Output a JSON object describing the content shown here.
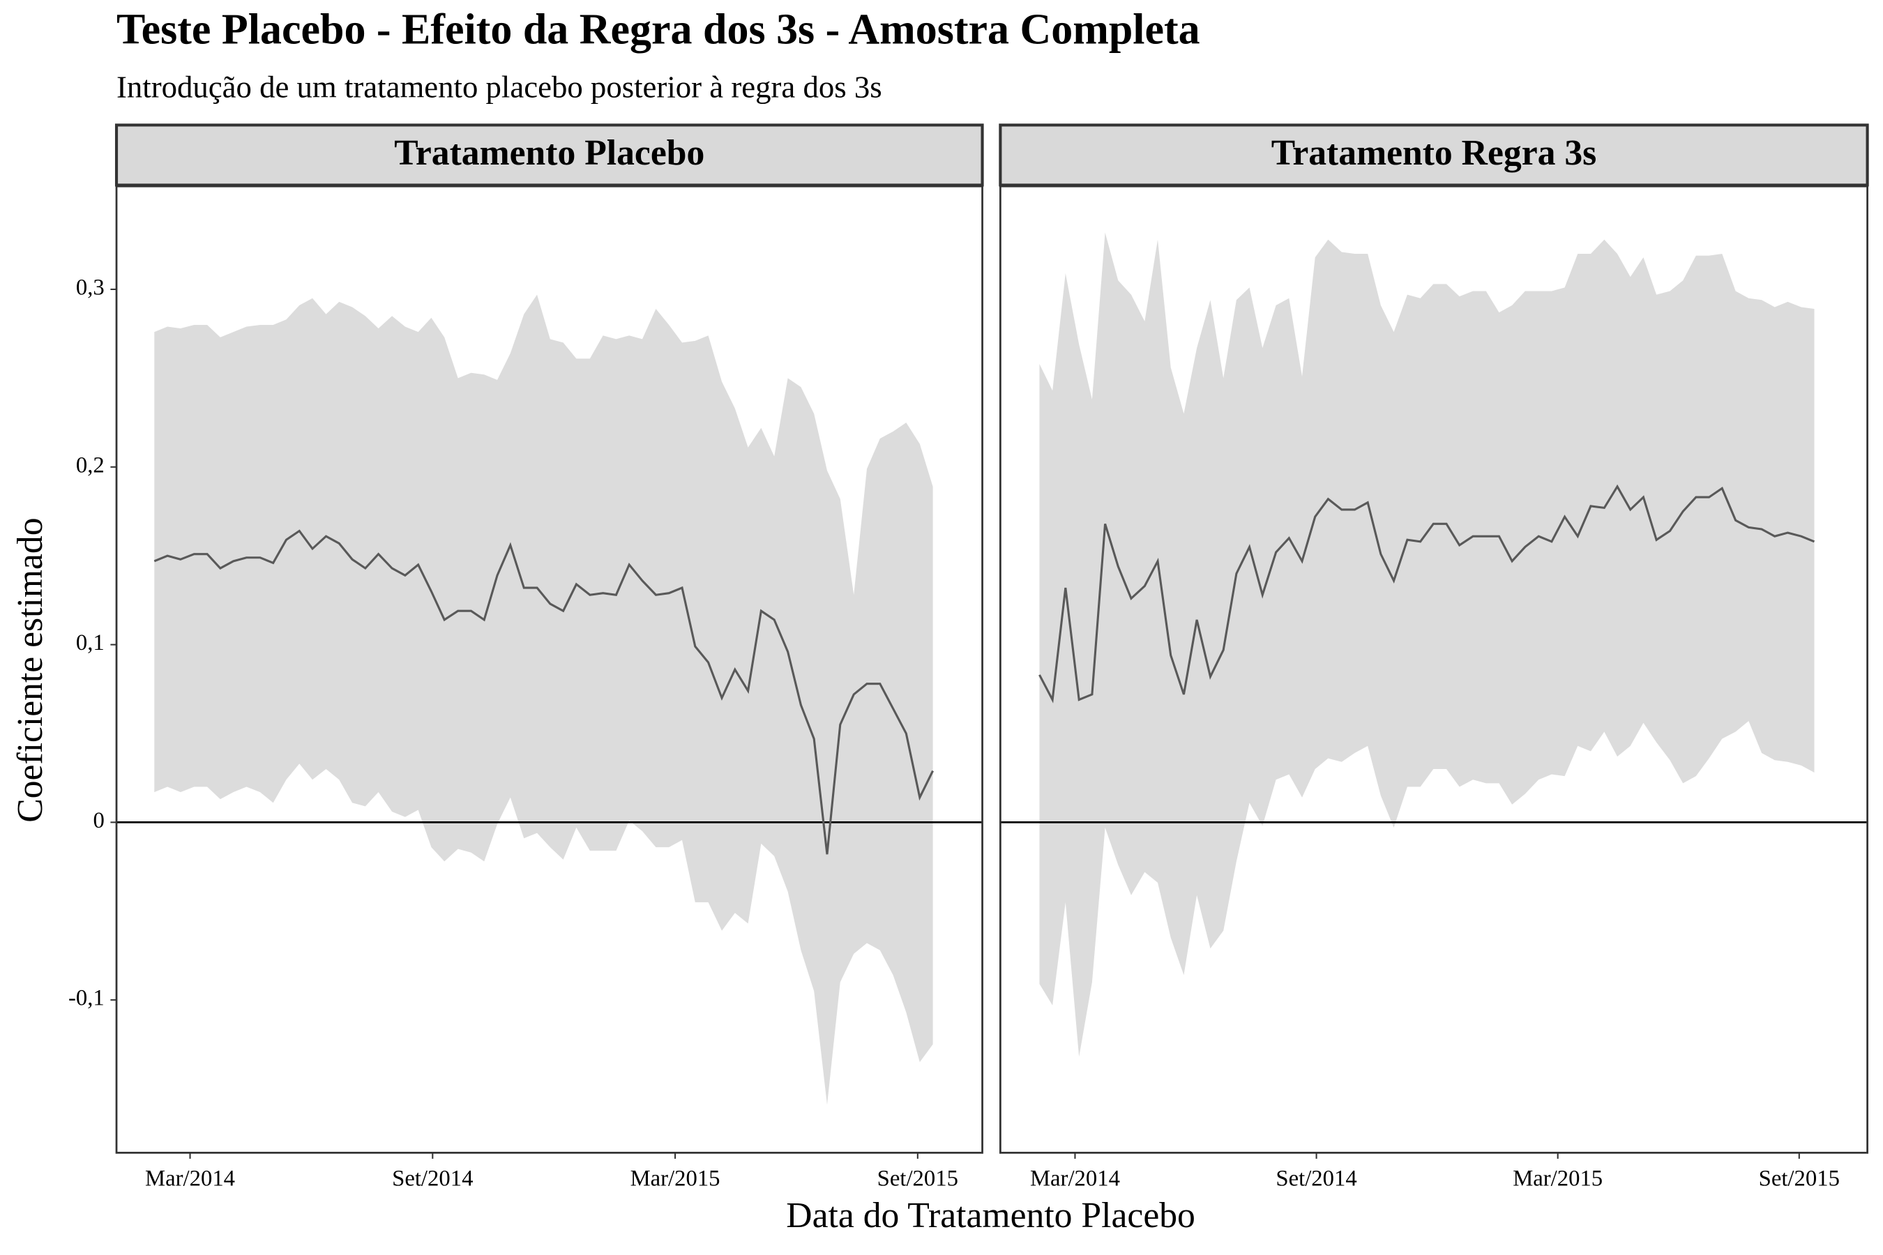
{
  "title": "Teste Placebo - Efeito da Regra dos 3s - Amostra Completa",
  "subtitle": "Introdução de um tratamento placebo posterior à regra dos 3s",
  "x_label": "Data do Tratamento Placebo",
  "y_label": "Coeficiente estimado",
  "chart_data": [
    {
      "type": "line",
      "facet": "Tratamento Placebo",
      "color": "#595959",
      "band_color": "#dcdcdc",
      "hline": 0,
      "xlim": [
        2014.015,
        2015.8
      ],
      "ylim": [
        -0.186,
        0.358
      ],
      "xticks": [
        {
          "value": 2014.1667,
          "label": "Mar/2014"
        },
        {
          "value": 2014.6667,
          "label": "Set/2014"
        },
        {
          "value": 2015.1667,
          "label": "Mar/2015"
        },
        {
          "value": 2015.6667,
          "label": "Set/2015"
        }
      ],
      "yticks": [
        {
          "value": -0.1,
          "label": "-0,1"
        },
        0,
        {
          "value": 0.1,
          "label": "0,1"
        },
        {
          "value": 0.2,
          "label": "0,2"
        },
        {
          "value": 0.3,
          "label": "0,3"
        }
      ],
      "x": [
        2014.093,
        2014.12,
        2014.147,
        2014.175,
        2014.202,
        2014.229,
        2014.256,
        2014.283,
        2014.311,
        2014.338,
        2014.365,
        2014.392,
        2014.419,
        2014.447,
        2014.474,
        2014.501,
        2014.528,
        2014.555,
        2014.583,
        2014.61,
        2014.637,
        2014.664,
        2014.691,
        2014.719,
        2014.746,
        2014.773,
        2014.8,
        2014.827,
        2014.855,
        2014.882,
        2014.909,
        2014.936,
        2014.963,
        2014.991,
        2015.018,
        2015.045,
        2015.072,
        2015.099,
        2015.127,
        2015.154,
        2015.181,
        2015.208,
        2015.235,
        2015.263,
        2015.29,
        2015.317,
        2015.344,
        2015.371,
        2015.399,
        2015.426,
        2015.453,
        2015.48,
        2015.507,
        2015.535,
        2015.562,
        2015.589,
        2015.616,
        2015.643,
        2015.671,
        2015.698
      ],
      "values": [
        0.147,
        0.15,
        0.148,
        0.151,
        0.151,
        0.143,
        0.147,
        0.149,
        0.149,
        0.146,
        0.159,
        0.164,
        0.154,
        0.161,
        0.157,
        0.148,
        0.143,
        0.151,
        0.143,
        0.139,
        0.145,
        0.13,
        0.114,
        0.119,
        0.119,
        0.114,
        0.139,
        0.156,
        0.132,
        0.132,
        0.123,
        0.119,
        0.134,
        0.128,
        0.129,
        0.128,
        0.145,
        0.136,
        0.128,
        0.129,
        0.132,
        0.099,
        0.09,
        0.07,
        0.086,
        0.074,
        0.119,
        0.114,
        0.096,
        0.066,
        0.047,
        -0.018,
        0.055,
        0.072,
        0.078,
        0.078,
        0.064,
        0.05,
        0.014,
        0.029
      ],
      "upper": [
        0.276,
        0.279,
        0.278,
        0.28,
        0.28,
        0.273,
        0.276,
        0.279,
        0.28,
        0.28,
        0.283,
        0.291,
        0.295,
        0.286,
        0.293,
        0.29,
        0.285,
        0.278,
        0.285,
        0.279,
        0.276,
        0.284,
        0.273,
        0.25,
        0.253,
        0.252,
        0.249,
        0.264,
        0.286,
        0.297,
        0.272,
        0.27,
        0.261,
        0.261,
        0.274,
        0.272,
        0.274,
        0.272,
        0.289,
        0.28,
        0.27,
        0.271,
        0.274,
        0.248,
        0.233,
        0.211,
        0.222,
        0.206,
        0.25,
        0.245,
        0.23,
        0.198,
        0.182,
        0.128,
        0.199,
        0.216,
        0.22,
        0.225,
        0.213,
        0.189
      ],
      "lower": [
        0.017,
        0.02,
        0.017,
        0.02,
        0.02,
        0.013,
        0.017,
        0.02,
        0.017,
        0.011,
        0.024,
        0.033,
        0.024,
        0.03,
        0.024,
        0.011,
        0.009,
        0.017,
        0.006,
        0.003,
        0.007,
        -0.014,
        -0.022,
        -0.015,
        -0.017,
        -0.022,
        -0.001,
        0.014,
        -0.009,
        -0.006,
        -0.014,
        -0.021,
        -0.003,
        -0.016,
        -0.016,
        -0.016,
        0.001,
        -0.005,
        -0.014,
        -0.014,
        -0.01,
        -0.045,
        -0.045,
        -0.061,
        -0.051,
        -0.057,
        -0.012,
        -0.019,
        -0.039,
        -0.072,
        -0.095,
        -0.159,
        -0.09,
        -0.074,
        -0.068,
        -0.072,
        -0.086,
        -0.107,
        -0.135,
        -0.125
      ]
    },
    {
      "type": "line",
      "facet": "Tratamento Regra 3s",
      "color": "#595959",
      "band_color": "#dcdcdc",
      "hline": 0,
      "xlim": [
        2014.012,
        2015.808
      ],
      "ylim": [
        -0.186,
        0.358
      ],
      "xticks": [
        {
          "value": 2014.1667,
          "label": "Mar/2014"
        },
        {
          "value": 2014.6667,
          "label": "Set/2014"
        },
        {
          "value": 2015.1667,
          "label": "Mar/2015"
        },
        {
          "value": 2015.6667,
          "label": "Set/2015"
        }
      ],
      "x": [
        2014.093,
        2014.12,
        2014.147,
        2014.175,
        2014.202,
        2014.229,
        2014.256,
        2014.283,
        2014.311,
        2014.338,
        2014.365,
        2014.392,
        2014.419,
        2014.447,
        2014.474,
        2014.501,
        2014.528,
        2014.555,
        2014.583,
        2014.61,
        2014.637,
        2014.664,
        2014.691,
        2014.719,
        2014.746,
        2014.773,
        2014.8,
        2014.827,
        2014.855,
        2014.882,
        2014.909,
        2014.936,
        2014.963,
        2014.991,
        2015.018,
        2015.045,
        2015.072,
        2015.099,
        2015.127,
        2015.154,
        2015.181,
        2015.208,
        2015.235,
        2015.263,
        2015.29,
        2015.317,
        2015.344,
        2015.371,
        2015.399,
        2015.426,
        2015.453,
        2015.48,
        2015.507,
        2015.535,
        2015.562,
        2015.589,
        2015.616,
        2015.643,
        2015.671,
        2015.698
      ],
      "values": [
        0.083,
        0.069,
        0.132,
        0.069,
        0.072,
        0.168,
        0.144,
        0.126,
        0.133,
        0.147,
        0.094,
        0.072,
        0.114,
        0.082,
        0.097,
        0.14,
        0.155,
        0.128,
        0.152,
        0.16,
        0.147,
        0.172,
        0.182,
        0.176,
        0.176,
        0.18,
        0.151,
        0.136,
        0.159,
        0.158,
        0.168,
        0.168,
        0.156,
        0.161,
        0.161,
        0.161,
        0.147,
        0.155,
        0.161,
        0.158,
        0.172,
        0.161,
        0.178,
        0.177,
        0.189,
        0.176,
        0.183,
        0.159,
        0.164,
        0.175,
        0.183,
        0.183,
        0.188,
        0.17,
        0.166,
        0.165,
        0.161,
        0.163,
        0.161,
        0.158
      ],
      "upper": [
        0.258,
        0.243,
        0.309,
        0.269,
        0.238,
        0.332,
        0.305,
        0.297,
        0.282,
        0.328,
        0.256,
        0.23,
        0.267,
        0.294,
        0.25,
        0.294,
        0.301,
        0.267,
        0.291,
        0.295,
        0.251,
        0.318,
        0.328,
        0.321,
        0.32,
        0.32,
        0.291,
        0.276,
        0.297,
        0.295,
        0.303,
        0.303,
        0.296,
        0.299,
        0.299,
        0.287,
        0.291,
        0.299,
        0.299,
        0.299,
        0.301,
        0.32,
        0.32,
        0.328,
        0.32,
        0.307,
        0.318,
        0.297,
        0.299,
        0.305,
        0.319,
        0.319,
        0.32,
        0.299,
        0.295,
        0.294,
        0.29,
        0.293,
        0.29,
        0.289
      ],
      "lower": [
        -0.091,
        -0.103,
        -0.045,
        -0.132,
        -0.09,
        -0.003,
        -0.024,
        -0.041,
        -0.028,
        -0.034,
        -0.065,
        -0.086,
        -0.041,
        -0.071,
        -0.061,
        -0.022,
        0.011,
        -0.002,
        0.024,
        0.027,
        0.014,
        0.03,
        0.036,
        0.034,
        0.039,
        0.043,
        0.015,
        -0.003,
        0.02,
        0.02,
        0.03,
        0.03,
        0.02,
        0.024,
        0.022,
        0.022,
        0.01,
        0.016,
        0.024,
        0.027,
        0.026,
        0.043,
        0.04,
        0.051,
        0.037,
        0.043,
        0.056,
        0.045,
        0.035,
        0.022,
        0.026,
        0.036,
        0.047,
        0.051,
        0.057,
        0.039,
        0.035,
        0.034,
        0.032,
        0.028
      ]
    }
  ]
}
